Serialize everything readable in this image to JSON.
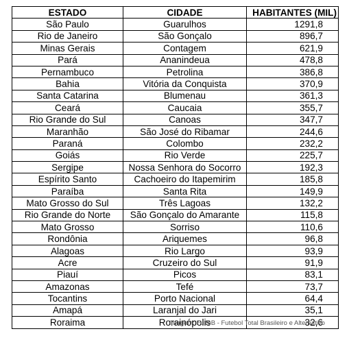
{
  "table": {
    "headers": [
      "ESTADO",
      "CIDADE",
      "HABITANTES (MIL)"
    ],
    "rows": [
      [
        "São Paulo",
        "Guarulhos",
        "1291,8"
      ],
      [
        "Rio de Janeiro",
        "São Gonçalo",
        "896,7"
      ],
      [
        "Minas Gerais",
        "Contagem",
        "621,9"
      ],
      [
        "Pará",
        "Ananindeua",
        "478,8"
      ],
      [
        "Pernambuco",
        "Petrolina",
        "386,8"
      ],
      [
        "Bahia",
        "Vitória da Conquista",
        "370,9"
      ],
      [
        "Santa Catarina",
        "Blumenau",
        "361,3"
      ],
      [
        "Ceará",
        "Caucaia",
        "355,7"
      ],
      [
        "Rio Grande do Sul",
        "Canoas",
        "347,7"
      ],
      [
        "Maranhão",
        "São José do Ribamar",
        "244,6"
      ],
      [
        "Paraná",
        "Colombo",
        "232,2"
      ],
      [
        "Goiás",
        "Rio Verde",
        "225,7"
      ],
      [
        "Sergipe",
        "Nossa Senhora do Socorro",
        "192,3"
      ],
      [
        "Espírito Santo",
        "Cachoeiro do Itapemirim",
        "185,8"
      ],
      [
        "Paraíba",
        "Santa Rita",
        "149,9"
      ],
      [
        "Mato Grosso do Sul",
        "Três Lagoas",
        "132,2"
      ],
      [
        "Rio Grande do Norte",
        "São Gonçalo do Amarante",
        "115,8"
      ],
      [
        "Mato Grosso",
        "Sorriso",
        "110,6"
      ],
      [
        "Rondônia",
        "Ariquemes",
        "96,8"
      ],
      [
        "Alagoas",
        "Rio Largo",
        "93,9"
      ],
      [
        "Acre",
        "Cruzeiro do Sul",
        "91,9"
      ],
      [
        "Piauí",
        "Picos",
        "83,1"
      ],
      [
        "Amazonas",
        "Tefé",
        "73,7"
      ],
      [
        "Tocantins",
        "Porto Nacional",
        "64,4"
      ],
      [
        "Amapá",
        "Laranjal do Jari",
        "35,1"
      ],
      [
        "Roraima",
        "Rorainópolis",
        "32,6"
      ]
    ]
  },
  "caption": "Imagem: FuToB - Futebol Total Brasileiro e Alternativo"
}
